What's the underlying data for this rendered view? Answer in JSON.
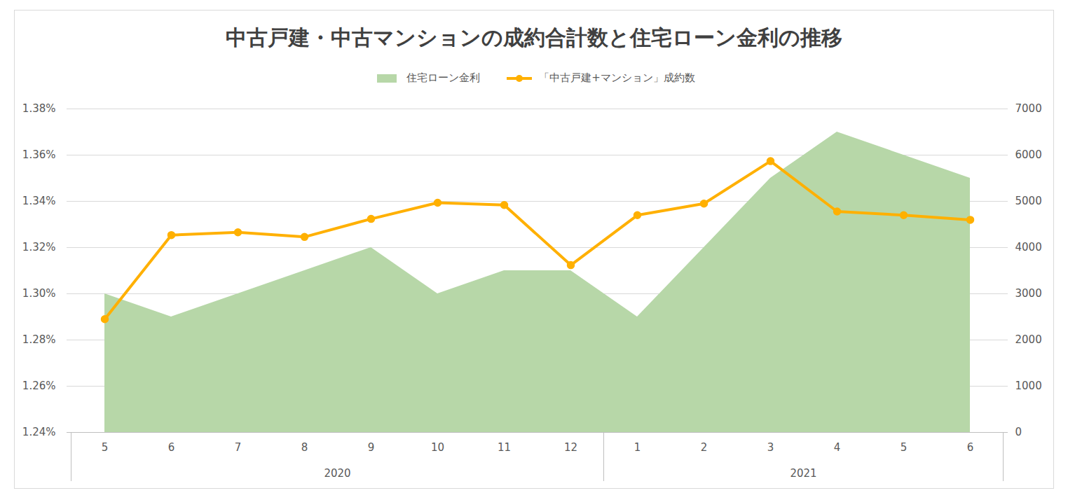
{
  "chart_data": {
    "type": "area_line",
    "title": "中古戸建・中古マンションの成約合計数と住宅ローン金利の推移",
    "categories": [
      {
        "label": "5",
        "group": "2020"
      },
      {
        "label": "6",
        "group": "2020"
      },
      {
        "label": "7",
        "group": "2020"
      },
      {
        "label": "8",
        "group": "2020"
      },
      {
        "label": "9",
        "group": "2020"
      },
      {
        "label": "10",
        "group": "2020"
      },
      {
        "label": "11",
        "group": "2020"
      },
      {
        "label": "12",
        "group": "2020"
      },
      {
        "label": "1",
        "group": "2021"
      },
      {
        "label": "2",
        "group": "2021"
      },
      {
        "label": "3",
        "group": "2021"
      },
      {
        "label": "4",
        "group": "2021"
      },
      {
        "label": "5",
        "group": "2021"
      },
      {
        "label": "6",
        "group": "2021"
      }
    ],
    "series": [
      {
        "name": "住宅ローン金利",
        "type": "area",
        "color": "#b7d7a8",
        "values": [
          1.3,
          1.29,
          1.3,
          1.31,
          1.32,
          1.3,
          1.31,
          1.31,
          1.29,
          1.32,
          1.35,
          1.37,
          1.36,
          1.35
        ]
      },
      {
        "name": "「中古戸建+マンション」成約数",
        "type": "line",
        "color": "#ffb000",
        "marker": "circle",
        "axis": "y2",
        "values": [
          2450,
          4270,
          4330,
          4230,
          4620,
          4970,
          4920,
          3620,
          4700,
          4950,
          5870,
          4780,
          4700,
          4600
        ]
      }
    ],
    "ylim": [
      1.24,
      1.38
    ],
    "yticks": [
      {
        "value": 1.24,
        "label": "1.24%"
      },
      {
        "value": 1.26,
        "label": "1.26%"
      },
      {
        "value": 1.28,
        "label": "1.28%"
      },
      {
        "value": 1.3,
        "label": "1.30%"
      },
      {
        "value": 1.32,
        "label": "1.32%"
      },
      {
        "value": 1.34,
        "label": "1.34%"
      },
      {
        "value": 1.36,
        "label": "1.36%"
      },
      {
        "value": 1.38,
        "label": "1.38%"
      }
    ],
    "y2lim": [
      0,
      7000
    ],
    "y2ticks": [
      0,
      1000,
      2000,
      3000,
      4000,
      5000,
      6000,
      7000
    ],
    "grid": true,
    "legend": "top"
  }
}
